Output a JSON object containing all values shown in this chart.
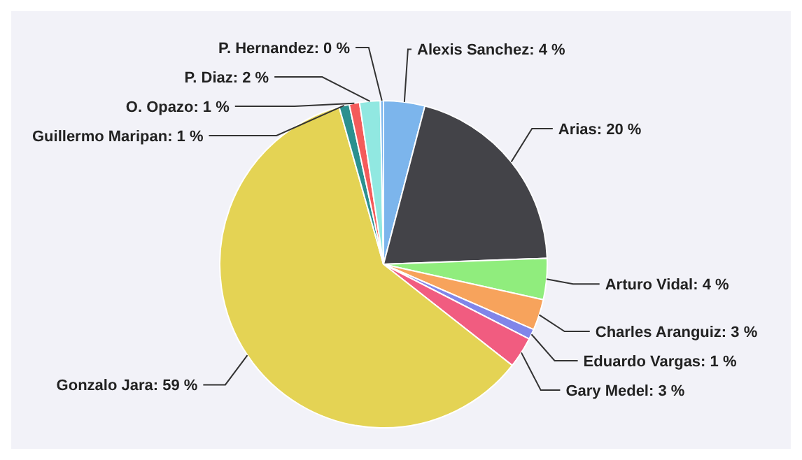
{
  "chart_data": {
    "type": "pie",
    "categories": [
      "Alexis Sanchez",
      "Arias",
      "Arturo Vidal",
      "Charles Aranguiz",
      "Eduardo Vargas",
      "Gary Medel",
      "Gonzalo Jara",
      "Guillermo Maripan",
      "O. Opazo",
      "P. Diaz",
      "P. Hernandez"
    ],
    "values": [
      4,
      20,
      4,
      3,
      1,
      3,
      59,
      1,
      1,
      2,
      0.3
    ],
    "value_labels": [
      "4 %",
      "20 %",
      "4 %",
      "3 %",
      "1 %",
      "3 %",
      "59 %",
      "1 %",
      "1 %",
      "2 %",
      "0 %"
    ],
    "colors": [
      "#7cb5ec",
      "#434348",
      "#90ed7d",
      "#f7a35c",
      "#8085e9",
      "#f15c80",
      "#e4d354",
      "#2b908f",
      "#f45b5b",
      "#91e8e1",
      "#7cb5ec"
    ]
  }
}
